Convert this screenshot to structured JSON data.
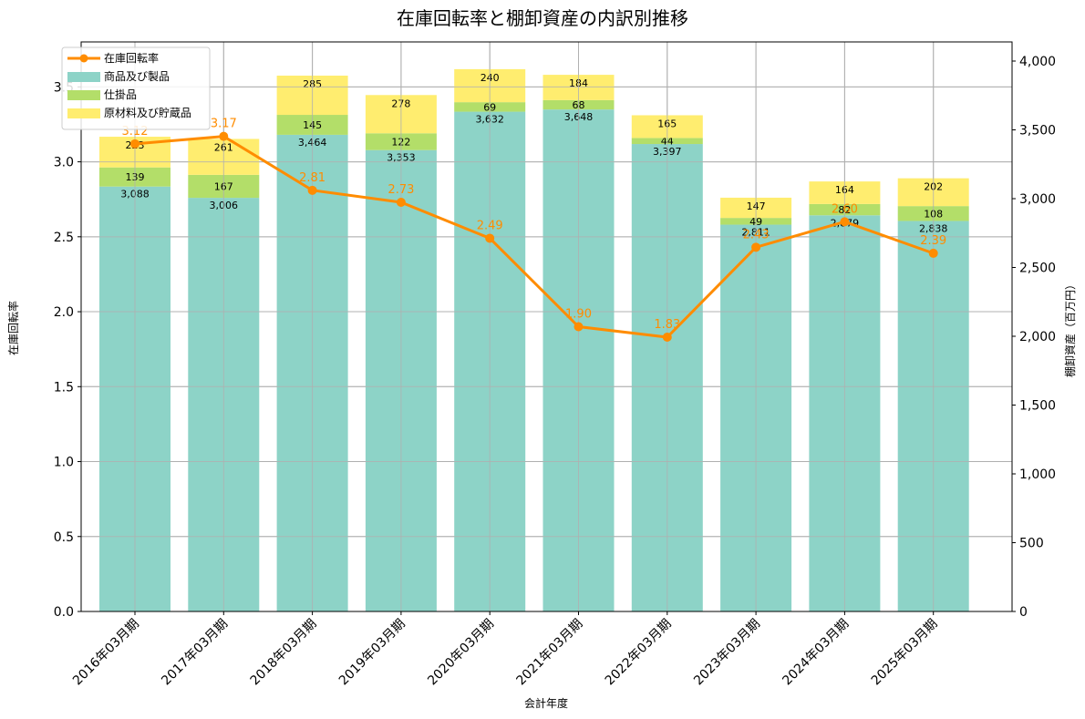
{
  "chart_data": {
    "type": "bar",
    "title": "在庫回転率と棚卸資産の内訳別推移",
    "xlabel": "会計年度",
    "ylabel_left": "在庫回転率",
    "ylabel_right": "棚卸資産（百万円）",
    "categories": [
      "2016年03月期",
      "2017年03月期",
      "2018年03月期",
      "2019年03月期",
      "2020年03月期",
      "2021年03月期",
      "2022年03月期",
      "2023年03月期",
      "2024年03月期",
      "2025年03月期"
    ],
    "series": [
      {
        "name": "商品及び製品",
        "type": "bar",
        "axis": "right",
        "stacked": true,
        "color": "#8dd3c7",
        "values": [
          3088,
          3006,
          3464,
          3353,
          3632,
          3648,
          3397,
          2811,
          2879,
          2838
        ]
      },
      {
        "name": "仕掛品",
        "type": "bar",
        "axis": "right",
        "stacked": true,
        "color": "#b3de69",
        "values": [
          139,
          167,
          145,
          122,
          69,
          68,
          44,
          49,
          82,
          108
        ]
      },
      {
        "name": "原材料及び貯蔵品",
        "type": "bar",
        "axis": "right",
        "stacked": true,
        "color": "#ffed6f",
        "values": [
          223,
          261,
          285,
          278,
          240,
          184,
          165,
          147,
          164,
          202
        ]
      },
      {
        "name": "在庫回転率",
        "type": "line",
        "axis": "left",
        "color": "#ff8c00",
        "values": [
          3.12,
          3.17,
          2.81,
          2.73,
          2.49,
          1.9,
          1.83,
          2.43,
          2.6,
          2.39
        ]
      }
    ],
    "ylim_left": [
      0,
      3.8
    ],
    "ylim_right": [
      0,
      4139
    ],
    "yticks_left": [
      "0.0",
      "0.5",
      "1.0",
      "1.5",
      "2.0",
      "2.5",
      "3.0",
      "3.5"
    ],
    "yticks_right": [
      "0",
      "500",
      "1,000",
      "1,500",
      "2,000",
      "2,500",
      "3,000",
      "3,500",
      "4,000"
    ],
    "grid": true,
    "legend_position": "upper left"
  },
  "legend": {
    "items": [
      {
        "label": "在庫回転率",
        "color": "#ff8c00",
        "kind": "line"
      },
      {
        "label": "商品及び製品",
        "color": "#8dd3c7",
        "kind": "patch"
      },
      {
        "label": "仕掛品",
        "color": "#b3de69",
        "kind": "patch"
      },
      {
        "label": "原材料及び貯蔵品",
        "color": "#ffed6f",
        "kind": "patch"
      }
    ]
  }
}
